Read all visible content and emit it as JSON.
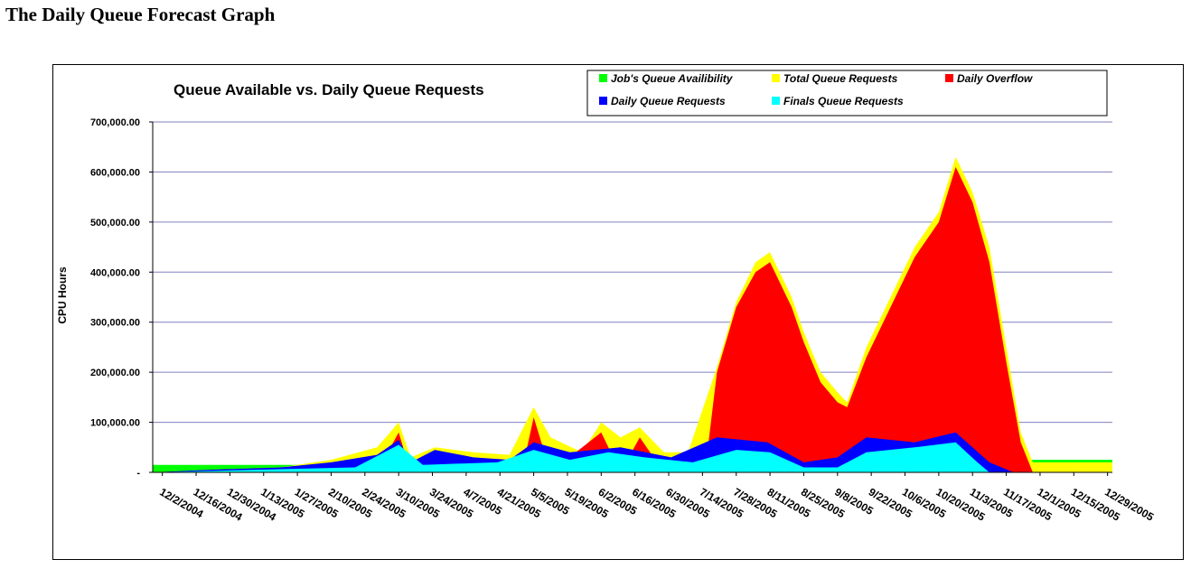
{
  "page": {
    "heading": "The Daily Queue Forecast Graph"
  },
  "chart_data": {
    "type": "area",
    "title": "Queue Available vs. Daily Queue Requests",
    "ylabel": "CPU Hours",
    "xlabel": "",
    "ylim": [
      0,
      700000
    ],
    "x_range": [
      "2004-11-28",
      "2005-12-31"
    ],
    "y_ticks": [
      "-",
      "100,000.00",
      "200,000.00",
      "300,000.00",
      "400,000.00",
      "500,000.00",
      "600,000.00",
      "700,000.00"
    ],
    "x_ticks": [
      "12/2/2004",
      "12/16/2004",
      "12/30/2004",
      "1/13/2005",
      "1/27/2005",
      "2/10/2005",
      "2/24/2005",
      "3/10/2005",
      "3/24/2005",
      "4/7/2005",
      "4/21/2005",
      "5/5/2005",
      "5/19/2005",
      "6/2/2005",
      "6/16/2005",
      "6/30/2005",
      "7/14/2005",
      "7/28/2005",
      "8/11/2005",
      "8/25/2005",
      "9/8/2005",
      "9/22/2005",
      "10/6/2005",
      "10/20/2005",
      "11/3/2005",
      "11/17/2005",
      "12/1/2005",
      "12/15/2005",
      "12/29/2005"
    ],
    "grid": "horizontal",
    "legend": "top-right",
    "series": [
      {
        "name": "Job's Queue Availibility",
        "color": "#00ff00",
        "dates": [
          "2004-11-28",
          "2005-03-01",
          "2005-03-10",
          "2005-11-20",
          "2005-11-25",
          "2005-12-31"
        ],
        "values": [
          15000,
          15000,
          0,
          0,
          25000,
          25000
        ]
      },
      {
        "name": "Total Queue Requests",
        "color": "#ffff00",
        "dates": [
          "2004-11-28",
          "2004-12-20",
          "2005-01-20",
          "2005-02-10",
          "2005-03-01",
          "2005-03-10",
          "2005-03-15",
          "2005-03-25",
          "2005-04-10",
          "2005-04-25",
          "2005-05-05",
          "2005-05-12",
          "2005-05-25",
          "2005-06-02",
          "2005-06-10",
          "2005-06-18",
          "2005-06-28",
          "2005-07-08",
          "2005-07-20",
          "2005-07-28",
          "2005-08-05",
          "2005-08-11",
          "2005-08-20",
          "2005-08-25",
          "2005-09-01",
          "2005-09-08",
          "2005-09-12",
          "2005-09-20",
          "2005-09-30",
          "2005-10-10",
          "2005-10-20",
          "2005-10-27",
          "2005-11-03",
          "2005-11-10",
          "2005-11-17",
          "2005-11-23",
          "2005-11-28",
          "2005-12-31"
        ],
        "values": [
          0,
          5000,
          10000,
          25000,
          50000,
          100000,
          30000,
          50000,
          40000,
          35000,
          130000,
          70000,
          40000,
          100000,
          70000,
          90000,
          40000,
          40000,
          210000,
          340000,
          420000,
          440000,
          350000,
          280000,
          200000,
          160000,
          140000,
          250000,
          350000,
          450000,
          520000,
          630000,
          560000,
          450000,
          250000,
          80000,
          20000,
          20000
        ]
      },
      {
        "name": "Daily Overflow",
        "color": "#ff0000",
        "dates": [
          "2004-11-28",
          "2005-03-01",
          "2005-03-10",
          "2005-03-15",
          "2005-04-30",
          "2005-05-05",
          "2005-05-12",
          "2005-06-02",
          "2005-06-10",
          "2005-06-18",
          "2005-06-28",
          "2005-07-15",
          "2005-07-20",
          "2005-07-28",
          "2005-08-05",
          "2005-08-11",
          "2005-08-20",
          "2005-08-25",
          "2005-09-01",
          "2005-09-08",
          "2005-09-12",
          "2005-09-20",
          "2005-09-30",
          "2005-10-10",
          "2005-10-20",
          "2005-10-27",
          "2005-11-03",
          "2005-11-10",
          "2005-11-17",
          "2005-11-23",
          "2005-11-28",
          "2005-12-31"
        ],
        "values": [
          0,
          0,
          80000,
          0,
          0,
          110000,
          0,
          80000,
          0,
          70000,
          0,
          0,
          200000,
          330000,
          400000,
          420000,
          330000,
          260000,
          180000,
          140000,
          130000,
          230000,
          330000,
          430000,
          500000,
          610000,
          540000,
          420000,
          220000,
          60000,
          0,
          0
        ]
      },
      {
        "name": "Daily Queue Requests",
        "color": "#0000ff",
        "dates": [
          "2004-11-28",
          "2004-12-20",
          "2005-01-20",
          "2005-02-10",
          "2005-03-01",
          "2005-03-10",
          "2005-03-15",
          "2005-03-25",
          "2005-04-10",
          "2005-04-25",
          "2005-05-05",
          "2005-05-20",
          "2005-06-10",
          "2005-07-01",
          "2005-07-20",
          "2005-08-10",
          "2005-08-25",
          "2005-09-08",
          "2005-09-20",
          "2005-10-10",
          "2005-10-27",
          "2005-11-10",
          "2005-11-20",
          "2005-12-31"
        ],
        "values": [
          0,
          5000,
          10000,
          20000,
          35000,
          65000,
          20000,
          45000,
          30000,
          25000,
          60000,
          40000,
          50000,
          30000,
          70000,
          60000,
          20000,
          30000,
          70000,
          60000,
          80000,
          20000,
          0,
          0
        ]
      },
      {
        "name": "Finals Queue Requests",
        "color": "#00ffff",
        "dates": [
          "2004-11-28",
          "2005-02-20",
          "2005-03-10",
          "2005-03-20",
          "2005-04-20",
          "2005-05-05",
          "2005-05-20",
          "2005-06-05",
          "2005-06-20",
          "2005-07-10",
          "2005-07-28",
          "2005-08-11",
          "2005-08-25",
          "2005-09-08",
          "2005-09-20",
          "2005-10-10",
          "2005-10-27",
          "2005-11-05",
          "2005-11-10",
          "2005-12-31"
        ],
        "values": [
          0,
          10000,
          55000,
          15000,
          20000,
          45000,
          25000,
          40000,
          30000,
          20000,
          45000,
          40000,
          10000,
          10000,
          40000,
          50000,
          60000,
          20000,
          0,
          0
        ]
      }
    ],
    "legend_rows": [
      [
        "Job's Queue Availibility",
        "Total Queue Requests",
        "Daily Overflow"
      ],
      [
        "Daily Queue Requests",
        "Finals Queue Requests"
      ]
    ]
  }
}
